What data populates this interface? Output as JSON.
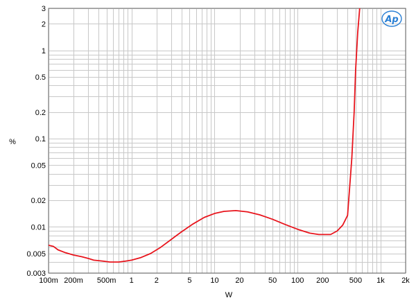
{
  "chart_data": {
    "type": "line",
    "title": "",
    "xlabel": "W",
    "ylabel": "%",
    "x_scale": "log",
    "y_scale": "log",
    "xlim": [
      0.1,
      2000
    ],
    "ylim": [
      0.003,
      3
    ],
    "grid": true,
    "legend": "none",
    "x_ticks": [
      {
        "value": 0.1,
        "label": "100m"
      },
      {
        "value": 0.2,
        "label": "200m"
      },
      {
        "value": 0.5,
        "label": "500m"
      },
      {
        "value": 1,
        "label": "1"
      },
      {
        "value": 2,
        "label": "2"
      },
      {
        "value": 5,
        "label": "5"
      },
      {
        "value": 10,
        "label": "10"
      },
      {
        "value": 20,
        "label": "20"
      },
      {
        "value": 50,
        "label": "50"
      },
      {
        "value": 100,
        "label": "100"
      },
      {
        "value": 200,
        "label": "200"
      },
      {
        "value": 500,
        "label": "500"
      },
      {
        "value": 1000,
        "label": "1k"
      },
      {
        "value": 2000,
        "label": "2k"
      }
    ],
    "y_ticks": [
      {
        "value": 3,
        "label": "3"
      },
      {
        "value": 2,
        "label": "2"
      },
      {
        "value": 1,
        "label": "1"
      },
      {
        "value": 0.5,
        "label": "0.5"
      },
      {
        "value": 0.2,
        "label": "0.2"
      },
      {
        "value": 0.1,
        "label": "0.1"
      },
      {
        "value": 0.05,
        "label": "0.05"
      },
      {
        "value": 0.02,
        "label": "0.02"
      },
      {
        "value": 0.01,
        "label": "0.01"
      },
      {
        "value": 0.005,
        "label": "0.005"
      },
      {
        "value": 0.003,
        "label": "0.003"
      }
    ],
    "series": [
      {
        "color": "#e8141c",
        "x": [
          0.1,
          0.115,
          0.13,
          0.16,
          0.2,
          0.25,
          0.3,
          0.35,
          0.45,
          0.55,
          0.7,
          0.85,
          1.0,
          1.3,
          1.7,
          2.2,
          3.0,
          4.0,
          5.5,
          7.5,
          10,
          13,
          18,
          25,
          35,
          50,
          70,
          100,
          140,
          180,
          250,
          300,
          350,
          400,
          450,
          480,
          500,
          530,
          560
        ],
        "y": [
          0.0062,
          0.006,
          0.0055,
          0.0051,
          0.0048,
          0.0046,
          0.0044,
          0.0042,
          0.0041,
          0.004,
          0.004,
          0.0041,
          0.0042,
          0.0045,
          0.005,
          0.0058,
          0.0072,
          0.0088,
          0.0108,
          0.0128,
          0.0142,
          0.015,
          0.0153,
          0.0148,
          0.0137,
          0.0122,
          0.0107,
          0.0094,
          0.0085,
          0.0082,
          0.0082,
          0.009,
          0.0105,
          0.0135,
          0.06,
          0.2,
          0.6,
          1.6,
          3.0
        ]
      }
    ]
  },
  "logo": {
    "text": "Ap",
    "color": "#2a7fd4"
  }
}
